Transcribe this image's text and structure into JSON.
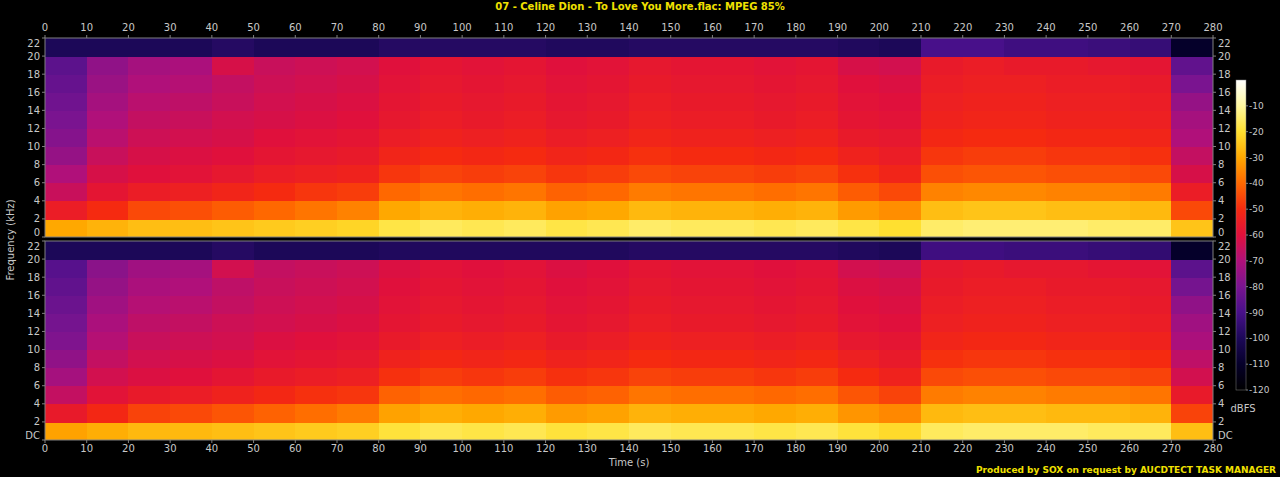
{
  "chart_data": {
    "type": "heatmap",
    "title": "07 - Celine Dion - To Love You More.flac: MPEG 85%",
    "x_label": "Time (s)",
    "y_label": "Frequency (kHz)",
    "footer": "Produced by SOX on request by AUCDTECT TASK MANAGER",
    "xlim": [
      0,
      280
    ],
    "xticks": [
      0,
      10,
      20,
      30,
      40,
      50,
      60,
      70,
      80,
      90,
      100,
      110,
      120,
      130,
      140,
      150,
      160,
      170,
      180,
      190,
      200,
      210,
      220,
      230,
      240,
      250,
      260,
      270,
      280
    ],
    "ylim": [
      0,
      22
    ],
    "time_bins": [
      0,
      10,
      20,
      30,
      40,
      50,
      60,
      70,
      80,
      90,
      100,
      110,
      120,
      130,
      140,
      150,
      160,
      170,
      180,
      190,
      200,
      210,
      220,
      230,
      240,
      250,
      260,
      270,
      280
    ],
    "freq_bins": [
      0,
      2,
      4,
      6,
      8,
      10,
      12,
      14,
      16,
      18,
      20,
      22
    ],
    "color_label": "dBFS",
    "color_range": [
      -120,
      0
    ],
    "color_ticks": [
      -10,
      -20,
      -30,
      -40,
      -50,
      -60,
      -70,
      -80,
      -90,
      -100,
      -110,
      -120
    ],
    "panels": [
      {
        "yticks": [
          0,
          2,
          4,
          6,
          8,
          10,
          12,
          14,
          16,
          18,
          20,
          22
        ],
        "cells": [
          [
            -30,
            -55,
            -65,
            -70,
            -75,
            -78,
            -80,
            -82,
            -84,
            -86,
            -100
          ],
          [
            -28,
            -50,
            -58,
            -62,
            -65,
            -68,
            -70,
            -72,
            -74,
            -76,
            -100
          ],
          [
            -26,
            -45,
            -55,
            -60,
            -62,
            -64,
            -66,
            -68,
            -70,
            -72,
            -100
          ],
          [
            -26,
            -44,
            -54,
            -59,
            -61,
            -63,
            -65,
            -67,
            -69,
            -71,
            -100
          ],
          [
            -25,
            -42,
            -52,
            -57,
            -60,
            -62,
            -63,
            -65,
            -66,
            -62,
            -98
          ],
          [
            -24,
            -40,
            -50,
            -55,
            -58,
            -60,
            -62,
            -63,
            -64,
            -65,
            -100
          ],
          [
            -23,
            -38,
            -48,
            -54,
            -57,
            -59,
            -61,
            -62,
            -63,
            -64,
            -100
          ],
          [
            -22,
            -36,
            -47,
            -53,
            -56,
            -58,
            -60,
            -61,
            -62,
            -63,
            -100
          ],
          [
            -18,
            -30,
            -40,
            -48,
            -52,
            -55,
            -57,
            -58,
            -59,
            -60,
            -98
          ],
          [
            -16,
            -28,
            -38,
            -46,
            -50,
            -53,
            -55,
            -56,
            -57,
            -58,
            -98
          ],
          [
            -17,
            -29,
            -39,
            -47,
            -51,
            -54,
            -56,
            -57,
            -58,
            -59,
            -98
          ],
          [
            -16,
            -28,
            -38,
            -46,
            -50,
            -53,
            -55,
            -56,
            -57,
            -58,
            -98
          ],
          [
            -18,
            -31,
            -41,
            -48,
            -52,
            -55,
            -57,
            -58,
            -59,
            -60,
            -99
          ],
          [
            -17,
            -30,
            -40,
            -47,
            -51,
            -54,
            -56,
            -57,
            -58,
            -59,
            -99
          ],
          [
            -15,
            -27,
            -37,
            -45,
            -49,
            -52,
            -54,
            -55,
            -56,
            -57,
            -98
          ],
          [
            -16,
            -28,
            -38,
            -46,
            -50,
            -53,
            -55,
            -56,
            -57,
            -58,
            -98
          ],
          [
            -16,
            -28,
            -38,
            -46,
            -50,
            -53,
            -55,
            -56,
            -57,
            -58,
            -98
          ],
          [
            -17,
            -29,
            -39,
            -47,
            -51,
            -54,
            -56,
            -57,
            -58,
            -59,
            -98
          ],
          [
            -16,
            -28,
            -38,
            -46,
            -50,
            -53,
            -55,
            -56,
            -57,
            -58,
            -98
          ],
          [
            -18,
            -32,
            -42,
            -49,
            -53,
            -56,
            -58,
            -59,
            -60,
            -62,
            -99
          ],
          [
            -20,
            -34,
            -45,
            -52,
            -55,
            -57,
            -59,
            -60,
            -61,
            -63,
            -100
          ],
          [
            -15,
            -26,
            -36,
            -44,
            -48,
            -51,
            -53,
            -54,
            -55,
            -56,
            -90
          ],
          [
            -14,
            -25,
            -35,
            -43,
            -47,
            -50,
            -52,
            -53,
            -54,
            -55,
            -90
          ],
          [
            -14,
            -25,
            -35,
            -43,
            -47,
            -50,
            -52,
            -53,
            -54,
            -56,
            -92
          ],
          [
            -14,
            -26,
            -36,
            -44,
            -48,
            -51,
            -53,
            -54,
            -55,
            -56,
            -92
          ],
          [
            -15,
            -26,
            -36,
            -44,
            -48,
            -51,
            -53,
            -54,
            -55,
            -57,
            -93
          ],
          [
            -15,
            -27,
            -37,
            -45,
            -49,
            -52,
            -54,
            -55,
            -56,
            -58,
            -94
          ],
          [
            -25,
            -45,
            -55,
            -62,
            -66,
            -70,
            -72,
            -75,
            -80,
            -85,
            -110
          ]
        ]
      },
      {
        "yticks": [
          {
            "value": 0,
            "label": "DC"
          },
          2,
          4,
          6,
          8,
          10,
          12,
          14,
          16,
          18,
          20,
          22
        ],
        "cells": [
          [
            -31,
            -56,
            -66,
            -72,
            -76,
            -79,
            -81,
            -83,
            -85,
            -87,
            -100
          ],
          [
            -29,
            -51,
            -59,
            -63,
            -66,
            -69,
            -71,
            -73,
            -75,
            -77,
            -100
          ],
          [
            -27,
            -46,
            -56,
            -61,
            -63,
            -65,
            -67,
            -69,
            -71,
            -73,
            -100
          ],
          [
            -27,
            -45,
            -55,
            -60,
            -62,
            -64,
            -66,
            -68,
            -70,
            -72,
            -100
          ],
          [
            -26,
            -43,
            -53,
            -58,
            -61,
            -63,
            -64,
            -66,
            -67,
            -63,
            -98
          ],
          [
            -25,
            -41,
            -51,
            -56,
            -59,
            -61,
            -63,
            -64,
            -65,
            -66,
            -100
          ],
          [
            -24,
            -39,
            -49,
            -55,
            -58,
            -60,
            -62,
            -63,
            -64,
            -65,
            -100
          ],
          [
            -23,
            -37,
            -48,
            -54,
            -57,
            -59,
            -61,
            -62,
            -63,
            -64,
            -100
          ],
          [
            -19,
            -31,
            -41,
            -49,
            -53,
            -56,
            -58,
            -59,
            -60,
            -61,
            -99
          ],
          [
            -17,
            -29,
            -39,
            -47,
            -51,
            -54,
            -56,
            -57,
            -58,
            -59,
            -99
          ],
          [
            -18,
            -30,
            -40,
            -48,
            -52,
            -55,
            -57,
            -58,
            -59,
            -60,
            -99
          ],
          [
            -17,
            -29,
            -39,
            -47,
            -51,
            -54,
            -56,
            -57,
            -58,
            -59,
            -99
          ],
          [
            -19,
            -32,
            -42,
            -49,
            -53,
            -56,
            -58,
            -59,
            -60,
            -61,
            -99
          ],
          [
            -18,
            -31,
            -41,
            -48,
            -52,
            -55,
            -57,
            -58,
            -59,
            -60,
            -99
          ],
          [
            -16,
            -28,
            -38,
            -46,
            -50,
            -53,
            -55,
            -56,
            -57,
            -58,
            -98
          ],
          [
            -17,
            -29,
            -39,
            -47,
            -51,
            -54,
            -56,
            -57,
            -58,
            -59,
            -98
          ],
          [
            -17,
            -29,
            -39,
            -47,
            -51,
            -54,
            -56,
            -57,
            -58,
            -59,
            -98
          ],
          [
            -18,
            -30,
            -40,
            -48,
            -52,
            -55,
            -57,
            -58,
            -59,
            -60,
            -98
          ],
          [
            -17,
            -29,
            -39,
            -47,
            -51,
            -54,
            -56,
            -57,
            -58,
            -59,
            -98
          ],
          [
            -19,
            -33,
            -43,
            -50,
            -54,
            -57,
            -59,
            -60,
            -61,
            -63,
            -99
          ],
          [
            -21,
            -35,
            -46,
            -53,
            -56,
            -58,
            -60,
            -61,
            -62,
            -64,
            -100
          ],
          [
            -16,
            -27,
            -37,
            -45,
            -49,
            -52,
            -54,
            -55,
            -56,
            -57,
            -92
          ],
          [
            -15,
            -26,
            -36,
            -44,
            -48,
            -51,
            -53,
            -54,
            -55,
            -56,
            -92
          ],
          [
            -15,
            -26,
            -36,
            -44,
            -48,
            -51,
            -53,
            -54,
            -55,
            -57,
            -93
          ],
          [
            -15,
            -27,
            -37,
            -45,
            -49,
            -52,
            -54,
            -55,
            -56,
            -57,
            -93
          ],
          [
            -16,
            -27,
            -37,
            -45,
            -49,
            -52,
            -54,
            -55,
            -56,
            -58,
            -94
          ],
          [
            -16,
            -28,
            -38,
            -46,
            -50,
            -53,
            -55,
            -56,
            -57,
            -59,
            -95
          ],
          [
            -26,
            -46,
            -56,
            -63,
            -67,
            -71,
            -73,
            -76,
            -81,
            -86,
            -110
          ]
        ]
      }
    ]
  }
}
